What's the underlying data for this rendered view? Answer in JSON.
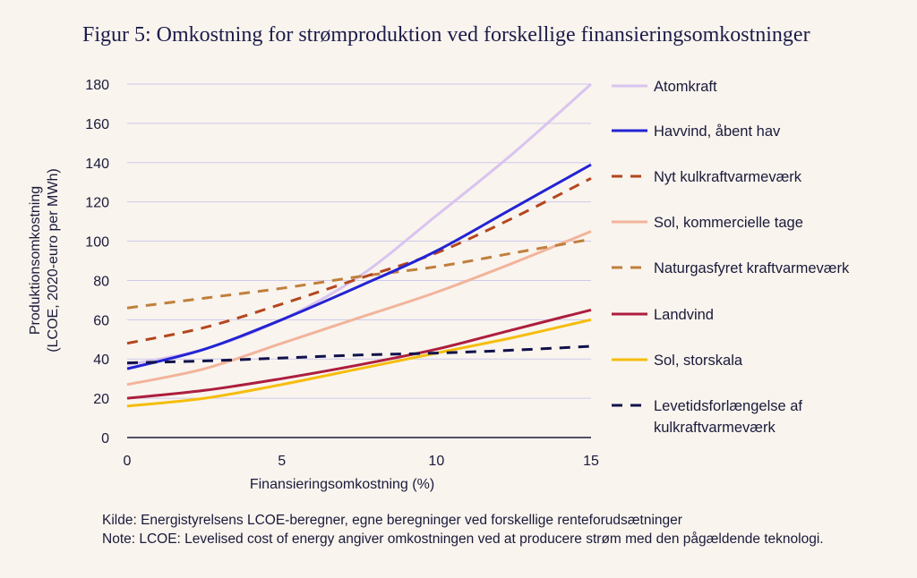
{
  "title": "Figur 5: Omkostning for strømproduktion ved forskellige finansieringsomkostninger",
  "source": "Kilde: Energistyrelsens LCOE-beregner, egne beregninger ved forskellige renteforudsætninger",
  "note": "Note: LCOE: Levelised cost of energy angiver omkostningen ved at producere strøm med den pågældende teknologi.",
  "chart_data": {
    "type": "line",
    "xlabel": "Finansieringsomkostning (%)",
    "ylabel_lines": [
      "Produktionsomkostning",
      "(LCOE, 2020-euro per MWh)"
    ],
    "xlim": [
      0,
      15
    ],
    "ylim": [
      0,
      180
    ],
    "x_ticks": [
      0,
      5,
      10,
      15
    ],
    "y_ticks": [
      0,
      20,
      40,
      60,
      80,
      100,
      120,
      140,
      160,
      180
    ],
    "grid": true,
    "legend_position": "right",
    "x": [
      0,
      2.5,
      5,
      7.5,
      10,
      12.5,
      15
    ],
    "series": [
      {
        "name": "Atomkraft",
        "color": "#d9c4ef",
        "dash": false,
        "values": [
          37,
          45,
          60,
          82,
          113,
          145,
          180
        ]
      },
      {
        "name": "Havvind, åbent hav",
        "color": "#2323d3",
        "dash": false,
        "values": [
          35,
          45,
          60,
          77,
          95,
          117,
          139
        ]
      },
      {
        "name": "Nyt kulkraftvarmeværk",
        "color": "#b4461e",
        "dash": true,
        "values": [
          48,
          56,
          68,
          81,
          94,
          112,
          132
        ]
      },
      {
        "name": "Sol, kommercielle tage",
        "color": "#f2b49b",
        "dash": false,
        "values": [
          27,
          35,
          48,
          61,
          74,
          89,
          105
        ]
      },
      {
        "name": "Naturgasfyret kraftvarmeværk",
        "color": "#c07f3c",
        "dash": true,
        "values": [
          66,
          71,
          76,
          82,
          87,
          94,
          101
        ]
      },
      {
        "name": "Landvind",
        "color": "#ad1e3e",
        "dash": false,
        "values": [
          20,
          24,
          30,
          37,
          45,
          55,
          65
        ]
      },
      {
        "name": "Sol, storskala",
        "color": "#f5bd0c",
        "dash": false,
        "values": [
          16,
          20,
          27,
          35,
          43,
          51,
          60
        ]
      },
      {
        "name": "Levetidsforlængelse af kulkraftvarmeværk",
        "color": "#11124a",
        "dash": true,
        "values": [
          38,
          39,
          40.5,
          42,
          43,
          44.5,
          46.5
        ]
      }
    ],
    "legend_labels": [
      [
        "Atomkraft"
      ],
      [
        "Havvind, åbent hav"
      ],
      [
        "Nyt kulkraftvarmeværk"
      ],
      [
        "Sol, kommercielle tage"
      ],
      [
        "Naturgasfyret kraftvarmeværk"
      ],
      [
        "Landvind"
      ],
      [
        "Sol, storskala"
      ],
      [
        "Levetidsforlængelse af",
        "kulkraftvarmeværk"
      ]
    ]
  }
}
